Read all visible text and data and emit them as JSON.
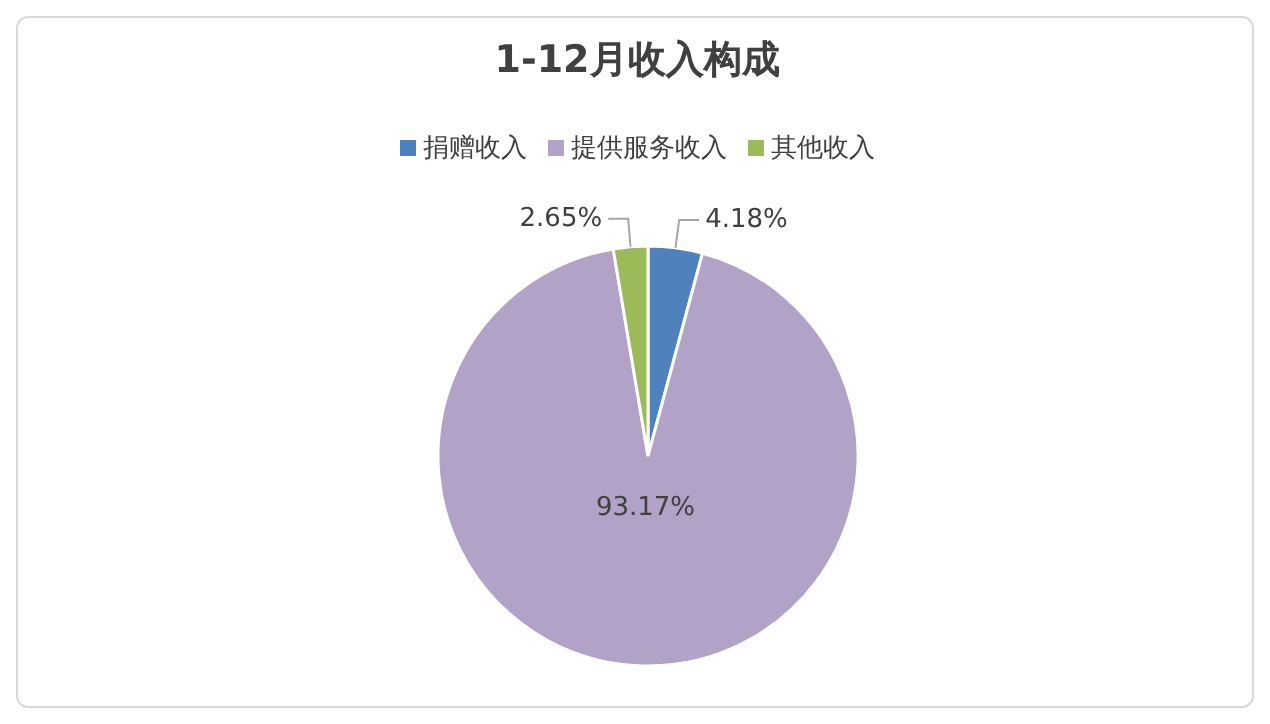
{
  "chart_data": {
    "type": "pie",
    "title": "1-12月收入构成",
    "categories": [
      "捐赠收入",
      "提供服务收入",
      "其他收入"
    ],
    "values": [
      4.18,
      93.17,
      2.65
    ],
    "colors": [
      "#4f81bd",
      "#b3a2c7",
      "#9bbb59"
    ],
    "value_labels": [
      "4.18%",
      "93.17%",
      "2.65%"
    ],
    "legend": "top"
  }
}
